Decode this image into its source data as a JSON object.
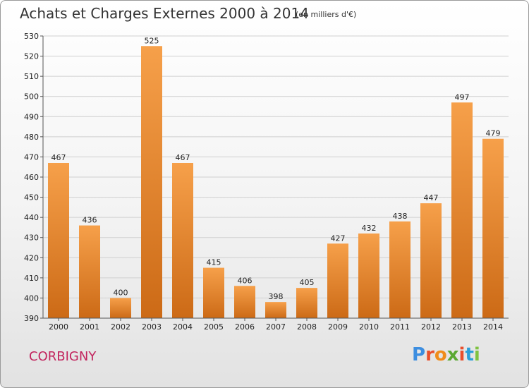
{
  "header": {
    "title": "Achats et Charges Externes 2000 à 2014",
    "subtitle": "(en milliers d'€)"
  },
  "footer": {
    "location": "CORBIGNY",
    "brand": "Proxiti",
    "brand_colors": [
      "#3d8ee0",
      "#e94f2c",
      "#f08c1a",
      "#5aa832",
      "#e94f2c",
      "#2b9fd8",
      "#7fc241"
    ]
  },
  "colors": {
    "bar_top": "#f6a04a",
    "bar_bottom": "#cc6a16",
    "axis": "#555555",
    "grid": "#d0d0d0"
  },
  "chart_data": {
    "type": "bar",
    "title": "Achats et Charges Externes 2000 à 2014",
    "subtitle": "(en milliers d'€)",
    "categories": [
      "2000",
      "2001",
      "2002",
      "2003",
      "2004",
      "2005",
      "2006",
      "2007",
      "2008",
      "2009",
      "2010",
      "2011",
      "2012",
      "2013",
      "2014"
    ],
    "values": [
      467,
      436,
      400,
      525,
      467,
      415,
      406,
      398,
      405,
      427,
      432,
      438,
      447,
      497,
      479
    ],
    "ylim": [
      390,
      530
    ],
    "yticks": [
      390,
      400,
      410,
      420,
      430,
      440,
      450,
      460,
      470,
      480,
      490,
      500,
      510,
      520,
      530
    ],
    "xlabel": "",
    "ylabel": "",
    "grid": true,
    "data_labels": true
  }
}
